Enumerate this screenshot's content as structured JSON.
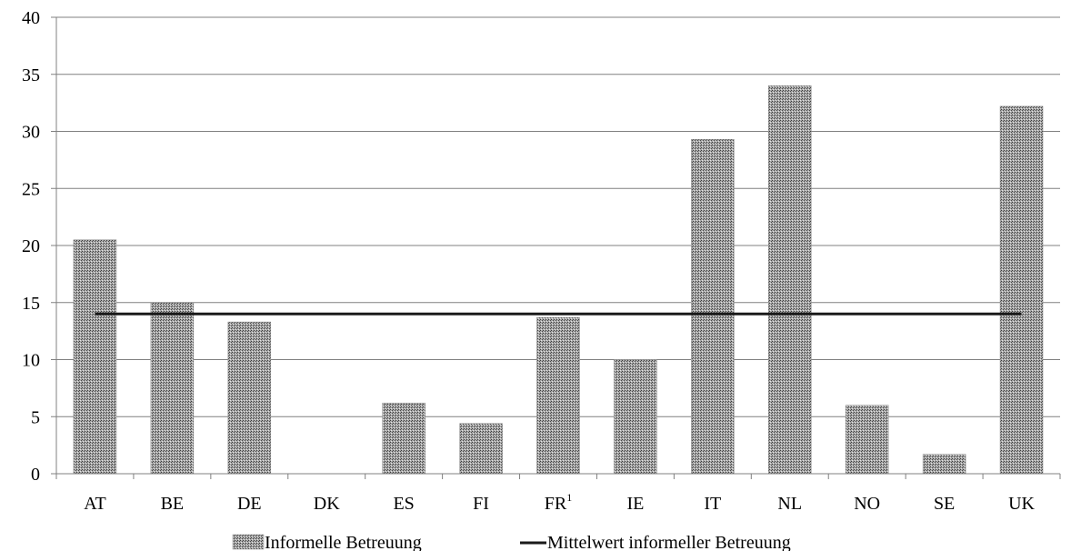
{
  "chart_data": {
    "type": "bar",
    "categories": [
      "AT",
      "BE",
      "DE",
      "DK",
      "ES",
      "FI",
      "FR",
      "IE",
      "IT",
      "NL",
      "NO",
      "SE",
      "UK"
    ],
    "category_superscripts": {
      "FR": "1"
    },
    "series": [
      {
        "name": "Informelle Betreuung",
        "type": "bar",
        "values": [
          20.5,
          15.0,
          13.3,
          0,
          6.2,
          4.4,
          13.7,
          10.0,
          29.3,
          34.0,
          6.0,
          1.7,
          32.2
        ]
      },
      {
        "name": "Mittelwert informeller Betreuung",
        "type": "line",
        "value": 14.0
      }
    ],
    "ylim": [
      0,
      40
    ],
    "yticks": [
      0,
      5,
      10,
      15,
      20,
      25,
      30,
      35,
      40
    ],
    "grid": true,
    "legend": "bottom",
    "colors": {
      "bar": "#8c8c8c",
      "line": "#1a1a1a",
      "grid": "#808080"
    }
  }
}
